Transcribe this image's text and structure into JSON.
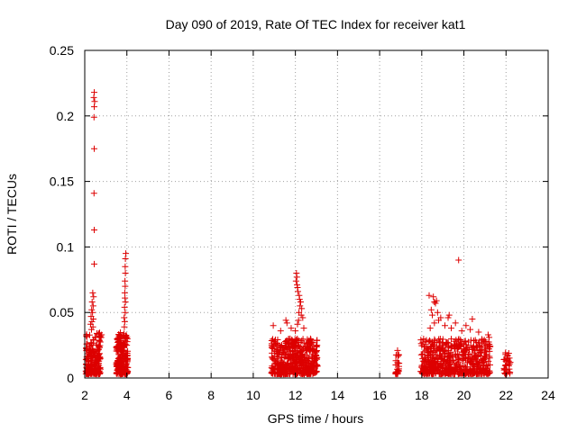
{
  "chart_data": {
    "type": "scatter",
    "title": "Day 090 of 2019, Rate Of TEC Index for receiver kat1",
    "xlabel": "GPS time / hours",
    "ylabel": "ROTI / TECUs",
    "xlim": [
      2,
      24
    ],
    "ylim": [
      0,
      0.25
    ],
    "xticks": [
      2,
      4,
      6,
      8,
      10,
      12,
      14,
      16,
      18,
      20,
      22,
      24
    ],
    "yticks": [
      0,
      0.05,
      0.1,
      0.15,
      0.2,
      0.25
    ],
    "ytick_labels": [
      "0",
      "0.05",
      "0.1",
      "0.15",
      "0.2",
      "0.25"
    ],
    "grid": true,
    "marker": "+",
    "color": "#dd0000",
    "clusters": [
      {
        "x": [
          2.05,
          2.75
        ],
        "ymax": 0.035,
        "n": 220
      },
      {
        "x": [
          3.5,
          4.05
        ],
        "ymax": 0.035,
        "n": 220
      },
      {
        "x": [
          10.85,
          12.05
        ],
        "ymax": 0.03,
        "n": 280
      },
      {
        "x": [
          12.0,
          13.05
        ],
        "ymax": 0.03,
        "n": 260
      },
      {
        "x": [
          16.75,
          16.95
        ],
        "ymax": 0.018,
        "n": 25
      },
      {
        "x": [
          17.95,
          19.5
        ],
        "ymax": 0.03,
        "n": 300
      },
      {
        "x": [
          19.5,
          21.25
        ],
        "ymax": 0.03,
        "n": 300
      },
      {
        "x": [
          21.9,
          22.2
        ],
        "ymax": 0.02,
        "n": 40
      }
    ],
    "points": [
      [
        2.45,
        0.218
      ],
      [
        2.43,
        0.214
      ],
      [
        2.47,
        0.211
      ],
      [
        2.45,
        0.207
      ],
      [
        2.44,
        0.199
      ],
      [
        2.45,
        0.175
      ],
      [
        2.44,
        0.141
      ],
      [
        2.45,
        0.113
      ],
      [
        2.45,
        0.087
      ],
      [
        2.38,
        0.065
      ],
      [
        2.42,
        0.062
      ],
      [
        2.35,
        0.058
      ],
      [
        2.4,
        0.055
      ],
      [
        2.33,
        0.052
      ],
      [
        2.37,
        0.05
      ],
      [
        2.3,
        0.047
      ],
      [
        2.41,
        0.045
      ],
      [
        2.34,
        0.043
      ],
      [
        2.28,
        0.041
      ],
      [
        2.39,
        0.039
      ],
      [
        2.32,
        0.037
      ],
      [
        2.8,
        0.033
      ],
      [
        2.78,
        0.031
      ],
      [
        3.95,
        0.095
      ],
      [
        3.93,
        0.091
      ],
      [
        3.92,
        0.085
      ],
      [
        3.93,
        0.08
      ],
      [
        3.91,
        0.074
      ],
      [
        3.92,
        0.07
      ],
      [
        3.9,
        0.065
      ],
      [
        3.91,
        0.061
      ],
      [
        3.93,
        0.058
      ],
      [
        3.89,
        0.054
      ],
      [
        3.92,
        0.05
      ],
      [
        3.87,
        0.046
      ],
      [
        3.9,
        0.043
      ],
      [
        3.88,
        0.039
      ],
      [
        10.95,
        0.04
      ],
      [
        11.55,
        0.044
      ],
      [
        11.6,
        0.042
      ],
      [
        11.3,
        0.036
      ],
      [
        11.8,
        0.038
      ],
      [
        12.05,
        0.08
      ],
      [
        12.07,
        0.077
      ],
      [
        12.03,
        0.074
      ],
      [
        12.08,
        0.071
      ],
      [
        12.1,
        0.069
      ],
      [
        12.12,
        0.066
      ],
      [
        12.18,
        0.063
      ],
      [
        12.2,
        0.06
      ],
      [
        12.25,
        0.058
      ],
      [
        12.22,
        0.055
      ],
      [
        12.3,
        0.053
      ],
      [
        12.17,
        0.05
      ],
      [
        12.28,
        0.048
      ],
      [
        12.35,
        0.046
      ],
      [
        12.15,
        0.044
      ],
      [
        12.1,
        0.041
      ],
      [
        12.4,
        0.038
      ],
      [
        12.0,
        0.036
      ],
      [
        16.85,
        0.021
      ],
      [
        18.35,
        0.063
      ],
      [
        18.55,
        0.062
      ],
      [
        18.6,
        0.058
      ],
      [
        18.7,
        0.059
      ],
      [
        18.65,
        0.057
      ],
      [
        18.45,
        0.052
      ],
      [
        18.75,
        0.05
      ],
      [
        18.5,
        0.048
      ],
      [
        18.9,
        0.046
      ],
      [
        19.3,
        0.048
      ],
      [
        19.25,
        0.046
      ],
      [
        18.8,
        0.044
      ],
      [
        18.6,
        0.042
      ],
      [
        19.6,
        0.042
      ],
      [
        19.1,
        0.04
      ],
      [
        18.4,
        0.038
      ],
      [
        19.4,
        0.038
      ],
      [
        19.75,
        0.09
      ],
      [
        20.4,
        0.045
      ],
      [
        20.1,
        0.04
      ],
      [
        20.3,
        0.037
      ],
      [
        21.15,
        0.033
      ],
      [
        21.2,
        0.031
      ],
      [
        20.7,
        0.035
      ],
      [
        19.9,
        0.036
      ]
    ]
  }
}
